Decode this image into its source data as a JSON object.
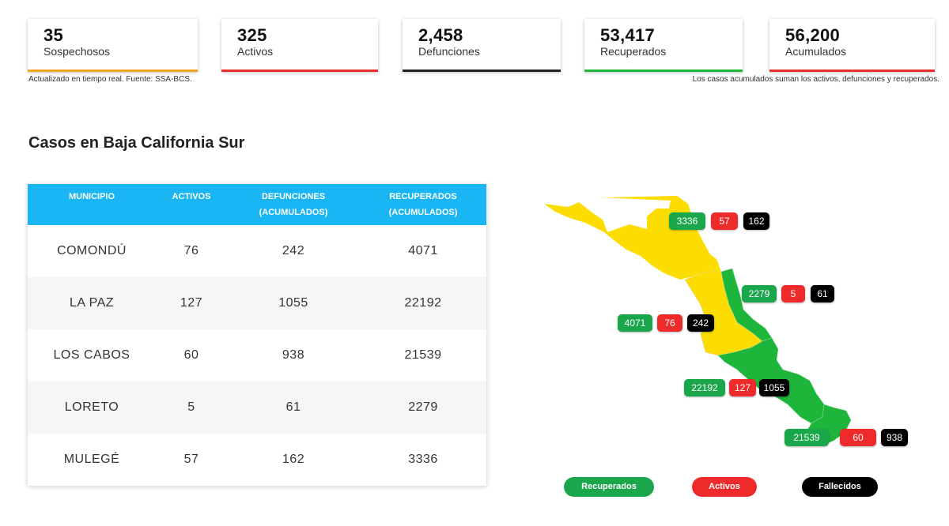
{
  "stats": {
    "sospechosos": {
      "value": "35",
      "label": "Sospechosos",
      "color": "#f0a41e"
    },
    "activos": {
      "value": "325",
      "label": "Activos",
      "color": "#e8312c"
    },
    "defunciones": {
      "value": "2,458",
      "label": "Defunciones",
      "color": "#222222"
    },
    "recuperados": {
      "value": "53,417",
      "label": "Recuperados",
      "color": "#1fba3b"
    },
    "acumulados": {
      "value": "56,200",
      "label": "Acumulados",
      "color": "#e8312c"
    }
  },
  "notes": {
    "source": "Actualizado en tiempo real. Fuente: SSA-BCS.",
    "accumulated": "Los casos acumulados suman los activos, defunciones y recuperados."
  },
  "section_title": "Casos en Baja California Sur",
  "table": {
    "headers": {
      "municipio": "MUNICIPIO",
      "activos": "ACTIVOS",
      "defunciones_1": "DEFUNCIONES",
      "defunciones_2": "(ACUMULADOS)",
      "recuperados_1": "RECUPERADOS",
      "recuperados_2": "(ACUMULADOS)"
    },
    "rows": [
      {
        "municipio": "COMONDÚ",
        "activos": "76",
        "defunciones": "242",
        "recuperados": "4071"
      },
      {
        "municipio": "LA PAZ",
        "activos": "127",
        "defunciones": "1055",
        "recuperados": "22192"
      },
      {
        "municipio": "LOS CABOS",
        "activos": "60",
        "defunciones": "938",
        "recuperados": "21539"
      },
      {
        "municipio": "LORETO",
        "activos": "5",
        "defunciones": "61",
        "recuperados": "2279"
      },
      {
        "municipio": "MULEGÉ",
        "activos": "57",
        "defunciones": "162",
        "recuperados": "3336"
      }
    ]
  },
  "map": {
    "colors": {
      "yellow": "#fddd00",
      "green": "#1db53a",
      "recuperados": "#1aa64a",
      "activos": "#ee2a2a",
      "fallecidos": "#000000"
    },
    "labels": {
      "mulege": {
        "recuperados": "3336",
        "activos": "57",
        "fallecidos": "162"
      },
      "loreto": {
        "recuperados": "2279",
        "activos": "5",
        "fallecidos": "61"
      },
      "comondu": {
        "recuperados": "4071",
        "activos": "76",
        "fallecidos": "242"
      },
      "lapaz": {
        "recuperados": "22192",
        "activos": "127",
        "fallecidos": "1055"
      },
      "loscabos": {
        "recuperados": "21539",
        "activos": "60",
        "fallecidos": "938"
      }
    }
  },
  "legend": {
    "recuperados": "Recuperados",
    "activos": "Activos",
    "fallecidos": "Fallecidos"
  }
}
